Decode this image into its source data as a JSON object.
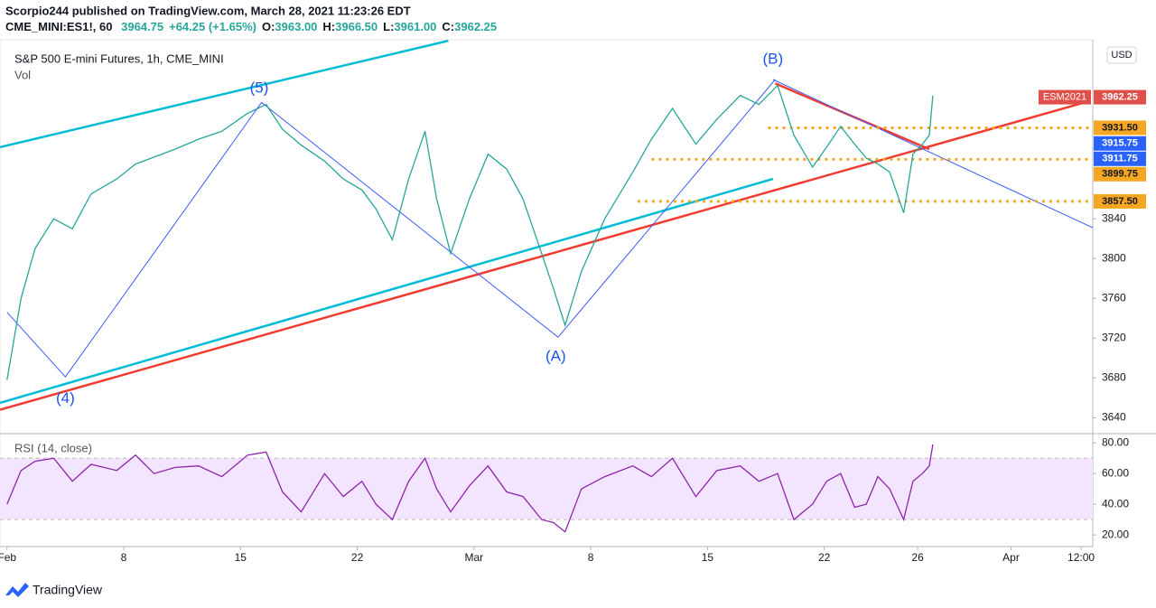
{
  "header": {
    "publisher": "Scorpio244 published on TradingView.com, March 28, 2021 11:23:26 EDT",
    "symbol": "CME_MINI:ES1!, 60",
    "last": "3964.75",
    "change": "+64.25 (+1.65%)",
    "ohlc": [
      {
        "key": "O:",
        "value": "3963.00"
      },
      {
        "key": "H:",
        "value": "3966.50"
      },
      {
        "key": "L:",
        "value": "3961.00"
      },
      {
        "key": "C:",
        "value": "3962.25"
      }
    ]
  },
  "chart_data": [
    {
      "type": "line",
      "title": "S&P 500 E-mini Futures, 1h, CME_MINI",
      "subtitle": "Vol",
      "currency": "USD",
      "color": "#26a69a",
      "x": [
        0,
        0.6,
        1.2,
        2.0,
        2.8,
        3.6,
        4.7,
        5.5,
        6.3,
        7.2,
        8.2,
        9.2,
        10.3,
        11.1,
        11.8,
        12.6,
        13.6,
        14.4,
        15.2,
        15.8,
        16.5,
        17.2,
        17.9,
        18.4,
        19.0,
        19.8,
        20.6,
        21.4,
        22.1,
        22.9,
        23.4,
        23.9,
        24.6,
        25.6,
        26.8,
        27.6,
        28.5,
        29.5,
        30.4,
        31.4,
        32.2,
        33.0,
        33.7,
        34.5,
        35.1,
        35.7,
        36.3,
        36.8,
        37.3,
        37.8,
        38.4,
        38.8,
        39.2,
        39.5,
        39.65
      ],
      "values": [
        3678,
        3760,
        3810,
        3840,
        3830,
        3865,
        3880,
        3895,
        3902,
        3910,
        3920,
        3928,
        3946,
        3955,
        3930,
        3914,
        3898,
        3880,
        3869,
        3850,
        3819,
        3880,
        3928,
        3860,
        3805,
        3860,
        3905,
        3890,
        3860,
        3805,
        3770,
        3733,
        3787,
        3840,
        3887,
        3920,
        3951,
        3915,
        3940,
        3964,
        3955,
        3974,
        3924,
        3892,
        3912,
        3933,
        3915,
        3901,
        3895,
        3887,
        3846,
        3905,
        3915,
        3924,
        3964
      ],
      "xlim": [
        -0.3,
        46.5
      ],
      "ylim": [
        3624,
        4020
      ],
      "yticks": [
        3640,
        3680,
        3720,
        3760,
        3800,
        3840
      ],
      "levels": [
        {
          "name": "ESM2021",
          "value": 3962.25,
          "label": "3962.25",
          "color": "#e0504a"
        },
        {
          "value": 3931.5,
          "label": "3931.50",
          "color": "#f5a623",
          "start": 32.6
        },
        {
          "value": 3915.75,
          "label": "3915.75",
          "color": "#2962ff"
        },
        {
          "value": 3911.75,
          "label": "3911.75",
          "color": "#2962ff"
        },
        {
          "value": 3899.75,
          "label": "3899.75",
          "color": "#f5a623",
          "start": 27.6
        },
        {
          "value": 3857.5,
          "label": "3857.50",
          "color": "#f5a623",
          "start": 27.0
        }
      ],
      "trendlines": [
        {
          "color": "#00bcd4",
          "width": 2.5,
          "points": [
            [
              -0.3,
              3912
            ],
            [
              18.9,
              4019
            ]
          ]
        },
        {
          "color": "#00bcd4",
          "width": 2.5,
          "points": [
            [
              -0.3,
              3655
            ],
            [
              32.8,
              3880
            ]
          ]
        },
        {
          "color": "#f23b30",
          "width": 2.5,
          "points": [
            [
              -0.3,
              3648
            ],
            [
              46.3,
              3958
            ]
          ]
        },
        {
          "color": "#f23b30",
          "width": 2.5,
          "points": [
            [
              32.9,
              3976
            ],
            [
              39.5,
              3910
            ]
          ]
        },
        {
          "color": "#3d5afe",
          "width": 1,
          "points": [
            [
              32.8,
              3980
            ],
            [
              46.5,
              3831
            ]
          ]
        },
        {
          "color": "#3d5afe",
          "width": 1,
          "points": [
            [
              0,
              3746
            ],
            [
              2.5,
              3681
            ],
            [
              10.9,
              3957
            ],
            [
              23.6,
              3721
            ],
            [
              32.9,
              3980
            ]
          ]
        }
      ],
      "annotations": [
        {
          "text": "(4)",
          "x": 2.5,
          "y": 3659
        },
        {
          "text": "(5)",
          "x": 10.8,
          "y": 3971
        },
        {
          "text": "(A)",
          "x": 23.5,
          "y": 3701
        },
        {
          "text": "(B)",
          "x": 32.8,
          "y": 4000
        }
      ]
    },
    {
      "type": "line",
      "title": "RSI (14, close)",
      "color": "#8e24aa",
      "x": [
        0,
        0.6,
        1.2,
        2.0,
        2.8,
        3.6,
        4.7,
        5.5,
        6.3,
        7.2,
        8.2,
        9.2,
        10.3,
        11.1,
        11.8,
        12.6,
        13.6,
        14.4,
        15.2,
        15.8,
        16.5,
        17.2,
        17.9,
        18.4,
        19.0,
        19.8,
        20.6,
        21.4,
        22.1,
        22.9,
        23.4,
        23.9,
        24.6,
        25.6,
        26.8,
        27.6,
        28.5,
        29.5,
        30.4,
        31.4,
        32.2,
        33.0,
        33.7,
        34.5,
        35.1,
        35.7,
        36.3,
        36.8,
        37.3,
        37.8,
        38.4,
        38.8,
        39.2,
        39.5,
        39.65
      ],
      "values": [
        40,
        62,
        68,
        70,
        55,
        66,
        62,
        72,
        60,
        64,
        65,
        58,
        72,
        74,
        48,
        35,
        60,
        45,
        55,
        40,
        30,
        55,
        70,
        50,
        35,
        52,
        65,
        48,
        45,
        30,
        28,
        22,
        50,
        58,
        65,
        58,
        70,
        45,
        62,
        65,
        55,
        60,
        30,
        40,
        55,
        60,
        38,
        40,
        58,
        50,
        30,
        55,
        60,
        65,
        79
      ],
      "xlim": [
        -0.3,
        46.5
      ],
      "ylim": [
        13,
        86
      ],
      "band": [
        30,
        70
      ],
      "yticks": [
        {
          "value": 20,
          "label": "20.00"
        },
        {
          "value": 40,
          "label": "40.00"
        },
        {
          "value": 60,
          "label": "60.00"
        },
        {
          "value": 80,
          "label": "80.00"
        }
      ],
      "xticks": [
        {
          "value": 0,
          "label": "Feb"
        },
        {
          "value": 5,
          "label": "8"
        },
        {
          "value": 10,
          "label": "15"
        },
        {
          "value": 15,
          "label": "22"
        },
        {
          "value": 20,
          "label": "Mar"
        },
        {
          "value": 25,
          "label": "8"
        },
        {
          "value": 30,
          "label": "15"
        },
        {
          "value": 35,
          "label": "22"
        },
        {
          "value": 39,
          "label": "26"
        },
        {
          "value": 43,
          "label": "Apr"
        },
        {
          "value": 46,
          "label": "12:00"
        }
      ]
    }
  ],
  "footer": {
    "brand": "TradingView"
  }
}
